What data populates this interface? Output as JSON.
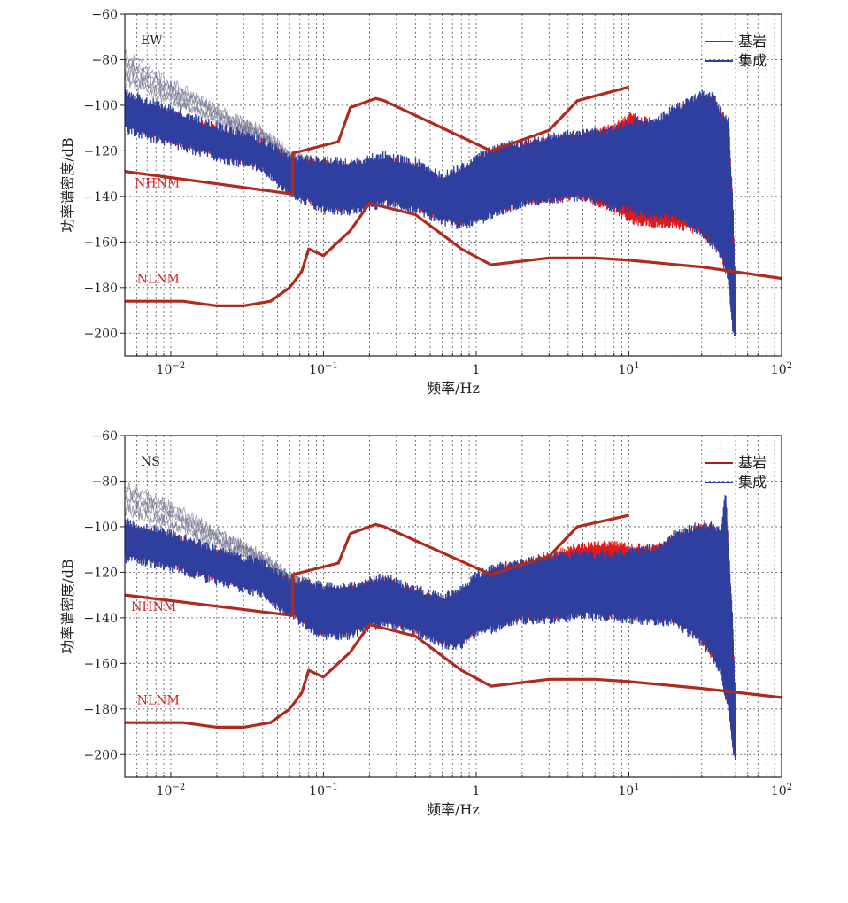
{
  "figure": {
    "xlabel": "频率/Hz",
    "ylabel": "功率谱密度/dB"
  },
  "legend": {
    "items": [
      {
        "label": "基岩",
        "color": "#a02020"
      },
      {
        "label": "集成",
        "color": "#3040a0"
      }
    ]
  },
  "colors": {
    "model_curve": "#b02a1e",
    "bedrock_band": "#e31a1c",
    "integrated_band": "#2f3f9f",
    "spread": "#6f6f90",
    "annotation": "#d42020"
  },
  "chart_data": [
    {
      "type": "line",
      "panel": "EW",
      "x_scale": "log",
      "xlim": [
        0.005,
        100
      ],
      "ylim": [
        -210,
        -60
      ],
      "yticks": [
        -60,
        -80,
        -100,
        -120,
        -140,
        -160,
        -180,
        -200
      ],
      "x_tick_labels": [
        {
          "value": 0.01,
          "base": "10",
          "exp": "−2"
        },
        {
          "value": 0.1,
          "base": "10",
          "exp": "−1"
        },
        {
          "value": 1,
          "base": "1",
          "exp": ""
        },
        {
          "value": 10,
          "base": "10",
          "exp": "1"
        },
        {
          "value": 100,
          "base": "10",
          "exp": "2"
        }
      ],
      "grid": true,
      "legend_position": "top-right",
      "annotations": [
        {
          "text": "NHNM",
          "x": 0.0058,
          "y": -136
        },
        {
          "text": "NLNM",
          "x": 0.006,
          "y": -178
        }
      ],
      "series": [
        {
          "name": "NHNM",
          "x": [
            0.005,
            0.063,
            0.063,
            0.125,
            0.15,
            0.22,
            0.25,
            1.25,
            3,
            4.6,
            10
          ],
          "y": [
            -129,
            -139,
            -121,
            -116,
            -101,
            -97,
            -98,
            -120,
            -111,
            -98,
            -92
          ]
        },
        {
          "name": "NLNM",
          "x": [
            0.005,
            0.012,
            0.02,
            0.03,
            0.045,
            0.06,
            0.072,
            0.08,
            0.1,
            0.15,
            0.2,
            0.4,
            0.8,
            1.25,
            3,
            6,
            10,
            30,
            100
          ],
          "y": [
            -186,
            -186,
            -188,
            -188,
            -186,
            -180,
            -173,
            -163,
            -166,
            -155,
            -143,
            -148,
            -163,
            -170,
            -167,
            -167,
            -168,
            -171,
            -176
          ]
        },
        {
          "name": "集成",
          "x": [
            0.005,
            0.01,
            0.02,
            0.04,
            0.06,
            0.1,
            0.15,
            0.25,
            0.4,
            0.6,
            0.8,
            1,
            1.5,
            2,
            3,
            5,
            8,
            10,
            15,
            20,
            30,
            35,
            40,
            45,
            48,
            50
          ],
          "upper": [
            -95,
            -103,
            -110,
            -116,
            -124,
            -125,
            -126,
            -123,
            -126,
            -132,
            -128,
            -124,
            -118,
            -118,
            -115,
            -113,
            -112,
            -108,
            -108,
            -102,
            -96,
            -96,
            -104,
            -108,
            -145,
            -182
          ],
          "lower": [
            -110,
            -116,
            -122,
            -127,
            -138,
            -145,
            -146,
            -142,
            -145,
            -150,
            -152,
            -150,
            -146,
            -142,
            -141,
            -139,
            -144,
            -145,
            -148,
            -148,
            -155,
            -160,
            -165,
            -176,
            -198,
            -200
          ]
        },
        {
          "name": "基岩",
          "x": [
            0.005,
            0.01,
            0.02,
            0.04,
            0.06,
            0.1,
            0.15,
            0.25,
            0.4,
            0.6,
            0.8,
            1,
            1.5,
            2,
            3,
            5,
            8,
            10,
            15,
            20,
            30,
            35,
            40,
            45,
            48,
            50
          ],
          "upper": [
            -98,
            -104,
            -111,
            -117,
            -125,
            -126,
            -127,
            -124,
            -127,
            -133,
            -129,
            -125,
            -119,
            -118,
            -116,
            -113,
            -110,
            -105,
            -108,
            -103,
            -98,
            -98,
            -104,
            -108,
            -145,
            -182
          ],
          "lower": [
            -108,
            -115,
            -121,
            -126,
            -137,
            -144,
            -145,
            -141,
            -144,
            -149,
            -151,
            -149,
            -146,
            -142,
            -141,
            -140,
            -145,
            -150,
            -152,
            -152,
            -155,
            -160,
            -165,
            -176,
            -198,
            -200
          ]
        }
      ]
    },
    {
      "type": "line",
      "panel": "NS",
      "x_scale": "log",
      "xlim": [
        0.005,
        100
      ],
      "ylim": [
        -210,
        -60
      ],
      "yticks": [
        -60,
        -80,
        -100,
        -120,
        -140,
        -160,
        -180,
        -200
      ],
      "x_tick_labels": [
        {
          "value": 0.01,
          "base": "10",
          "exp": "−2"
        },
        {
          "value": 0.1,
          "base": "10",
          "exp": "−1"
        },
        {
          "value": 1,
          "base": "1",
          "exp": ""
        },
        {
          "value": 10,
          "base": "10",
          "exp": "1"
        },
        {
          "value": 100,
          "base": "10",
          "exp": "2"
        }
      ],
      "grid": true,
      "legend_position": "top-right",
      "annotations": [
        {
          "text": "NHNM",
          "x": 0.0055,
          "y": -137
        },
        {
          "text": "NLNM",
          "x": 0.006,
          "y": -178
        }
      ],
      "series": [
        {
          "name": "NHNM",
          "x": [
            0.005,
            0.063,
            0.063,
            0.125,
            0.15,
            0.22,
            0.25,
            1.25,
            3,
            4.6,
            10
          ],
          "y": [
            -130,
            -139,
            -121,
            -116,
            -103,
            -99,
            -100,
            -121,
            -113,
            -100,
            -95
          ]
        },
        {
          "name": "NLNM",
          "x": [
            0.005,
            0.012,
            0.02,
            0.03,
            0.045,
            0.06,
            0.072,
            0.08,
            0.1,
            0.15,
            0.2,
            0.4,
            0.8,
            1.25,
            3,
            6,
            10,
            30,
            100
          ],
          "y": [
            -186,
            -186,
            -188,
            -188,
            -186,
            -180,
            -173,
            -163,
            -166,
            -155,
            -143,
            -148,
            -163,
            -170,
            -167,
            -167,
            -168,
            -171,
            -175
          ]
        },
        {
          "name": "集成",
          "x": [
            0.005,
            0.01,
            0.02,
            0.04,
            0.06,
            0.1,
            0.15,
            0.25,
            0.4,
            0.6,
            0.8,
            1,
            1.5,
            2,
            3,
            5,
            8,
            10,
            15,
            20,
            30,
            35,
            40,
            43,
            45,
            48,
            50
          ],
          "upper": [
            -99,
            -104,
            -111,
            -117,
            -124,
            -127,
            -127,
            -123,
            -128,
            -132,
            -128,
            -122,
            -118,
            -117,
            -114,
            -113,
            -113,
            -112,
            -110,
            -104,
            -100,
            -100,
            -104,
            -86,
            -110,
            -145,
            -182
          ],
          "lower": [
            -113,
            -117,
            -123,
            -129,
            -138,
            -147,
            -147,
            -141,
            -146,
            -151,
            -151,
            -146,
            -143,
            -140,
            -140,
            -138,
            -139,
            -140,
            -141,
            -141,
            -150,
            -156,
            -163,
            -174,
            -178,
            -198,
            -200
          ]
        },
        {
          "name": "基岩",
          "x": [
            0.005,
            0.01,
            0.02,
            0.04,
            0.06,
            0.1,
            0.15,
            0.25,
            0.4,
            0.6,
            0.8,
            1,
            1.5,
            2,
            3,
            5,
            8,
            10,
            15,
            20,
            30,
            35,
            40,
            43,
            45,
            48,
            50
          ],
          "upper": [
            -100,
            -105,
            -112,
            -118,
            -125,
            -128,
            -128,
            -124,
            -129,
            -133,
            -129,
            -123,
            -118,
            -116,
            -113,
            -109,
            -108,
            -109,
            -110,
            -105,
            -101,
            -101,
            -104,
            -88,
            -110,
            -145,
            -182
          ],
          "lower": [
            -111,
            -116,
            -122,
            -128,
            -137,
            -146,
            -146,
            -140,
            -145,
            -150,
            -150,
            -145,
            -142,
            -139,
            -139,
            -137,
            -138,
            -139,
            -140,
            -140,
            -150,
            -156,
            -163,
            -174,
            -178,
            -198,
            -200
          ]
        }
      ]
    }
  ]
}
